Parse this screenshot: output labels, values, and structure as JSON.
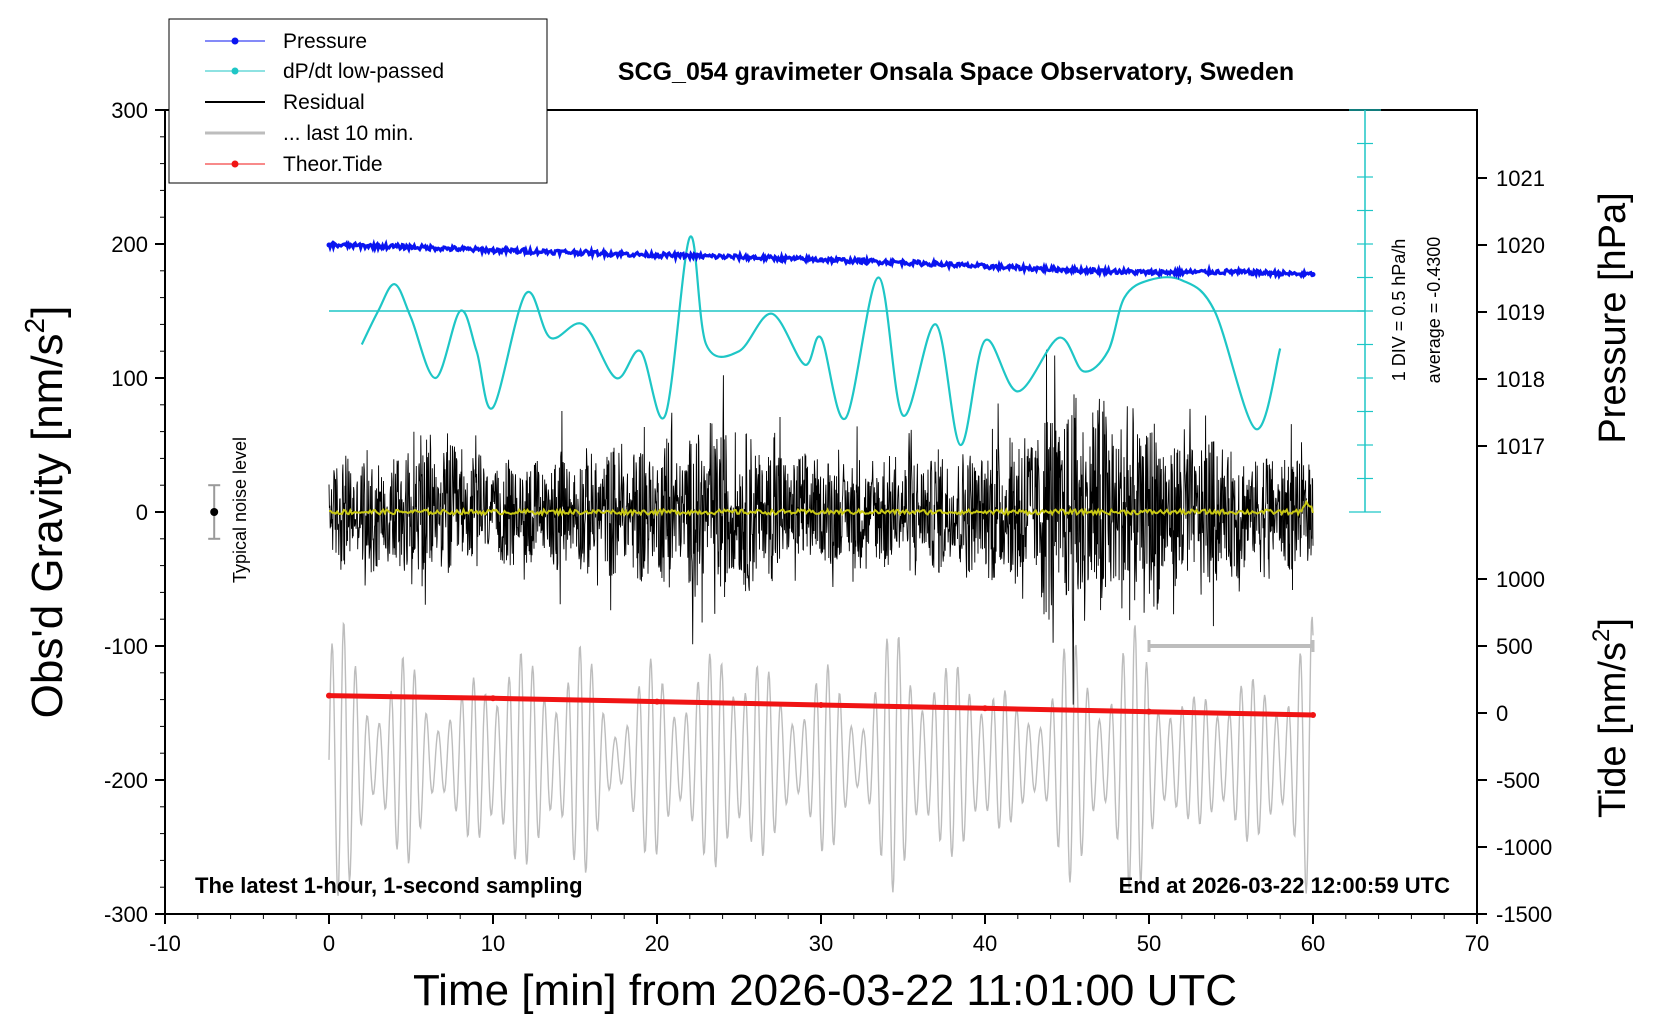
{
  "colors": {
    "pressure": "#0a14f0",
    "dpdt": "#1ec6c6",
    "residual": "#000000",
    "last10": "#bdbdbd",
    "tide": "#f01414",
    "residual_smooth": "#c8c814"
  },
  "chart_data": {
    "type": "line",
    "title": "SCG_054 gravimeter Onsala Space Observatory, Sweden",
    "xlabel": "Time [min] from 2026-03-22 11:01:00 UTC",
    "ylabel": "Obs'd Gravity [nm/s",
    "ylabel_sup": "2",
    "ylabel_end": "]",
    "xlim": [
      -10,
      70
    ],
    "ylim": [
      -300,
      300
    ],
    "x_ticks": [
      "-10",
      "0",
      "10",
      "20",
      "30",
      "40",
      "50",
      "60",
      "70"
    ],
    "y_ticks": [
      "300",
      "200",
      "100",
      "0",
      "-100",
      "-200",
      "-300"
    ],
    "pressure_axis": {
      "label": "Pressure [hPa]",
      "ticks": [
        "1021",
        "1020",
        "1019",
        "1018",
        "1017"
      ]
    },
    "tide_axis": {
      "label": "Tide [nm/s",
      "label_sup": "2",
      "label_end": "]",
      "ticks": [
        "1000",
        "500",
        "0",
        "-500",
        "-1000",
        "-1500"
      ]
    },
    "legend": [
      {
        "label": "Pressure",
        "key": "pressure"
      },
      {
        "label": "dP/dt low-passed",
        "key": "dpdt"
      },
      {
        "label": "Residual",
        "key": "residual"
      },
      {
        "label": "... last 10 min.",
        "key": "last10"
      },
      {
        "label": "Theor.Tide",
        "key": "tide"
      }
    ],
    "annotations": {
      "noise_label": "Typical noise level",
      "div_label": "1 DIV = 0.5 hPa/h",
      "avg_label": "average = -0.4300",
      "bottom_left": "The latest 1-hour, 1-second sampling",
      "bottom_right": "End at 2026-03-22 12:00:59 UTC"
    },
    "noise_bar": {
      "x": -7,
      "center": 0,
      "half_range": 20
    },
    "last10_bar": {
      "x_start": 50,
      "x_end": 60,
      "y": -100
    },
    "dpdt_reference_y": 150,
    "series": [
      {
        "name": "Pressure",
        "unit": "hPa",
        "x": [
          0,
          5,
          10,
          15,
          20,
          25,
          30,
          35,
          40,
          45,
          50,
          55,
          60
        ],
        "values": [
          1020.0,
          1019.97,
          1019.92,
          1019.89,
          1019.85,
          1019.82,
          1019.78,
          1019.74,
          1019.68,
          1019.63,
          1019.59,
          1019.6,
          1019.56
        ]
      },
      {
        "name": "dP/dt low-passed",
        "unit": "nm/s2 plot scale",
        "x": [
          2,
          3,
          4,
          5,
          6.5,
          8,
          9,
          10,
          12,
          13.5,
          15.5,
          17.5,
          19,
          20.5,
          22,
          23,
          25,
          27,
          29,
          30,
          31.5,
          33.5,
          35,
          37,
          38.5,
          40,
          42,
          44.5,
          46,
          47.5,
          48.5,
          50,
          52,
          54,
          56.5,
          58
        ],
        "values": [
          125,
          150,
          170,
          145,
          100,
          150,
          120,
          78,
          163,
          130,
          140,
          100,
          120,
          72,
          205,
          125,
          120,
          148,
          110,
          130,
          70,
          175,
          72,
          140,
          50,
          128,
          90,
          130,
          105,
          120,
          160,
          173,
          173,
          150,
          62,
          122
        ]
      },
      {
        "name": "Theor.Tide",
        "unit": "nm/s2",
        "x": [
          0,
          10,
          20,
          30,
          40,
          50,
          60
        ],
        "values": [
          130,
          110,
          85,
          60,
          35,
          10,
          -15
        ]
      },
      {
        "name": "Residual",
        "unit": "nm/s2",
        "x_range": [
          0,
          60
        ],
        "envelope": [
          {
            "x": 0,
            "amp": 70
          },
          {
            "x": 6.5,
            "amp": 95
          },
          {
            "x": 10,
            "amp": 65
          },
          {
            "x": 20.5,
            "amp": 95
          },
          {
            "x": 24.5,
            "amp": 110
          },
          {
            "x": 30,
            "amp": 70
          },
          {
            "x": 40,
            "amp": 85
          },
          {
            "x": 44.5,
            "amp": 150
          },
          {
            "x": 47.5,
            "amp": 150
          },
          {
            "x": 53.5,
            "amp": 95
          },
          {
            "x": 60,
            "amp": 70
          }
        ]
      },
      {
        "name": "... last 10 min.",
        "unit": "nm/s2",
        "x_range": [
          0,
          60
        ],
        "offset": -185,
        "amp_range": [
          40,
          110
        ]
      }
    ]
  }
}
